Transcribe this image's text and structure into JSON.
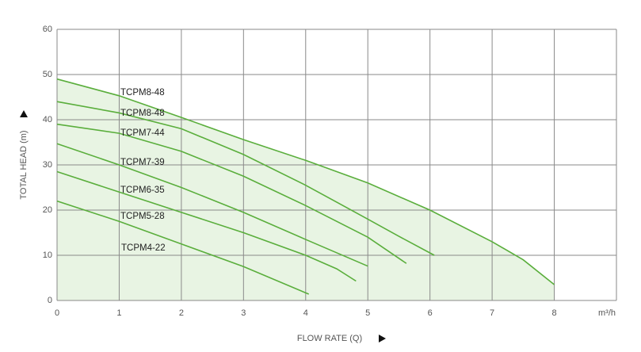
{
  "chart_data": {
    "type": "line",
    "x_label": "FLOW RATE (Q)",
    "y_label": "TOTAL HEAD (m)",
    "x_unit": "m³/h",
    "xlim": [
      0,
      9
    ],
    "xticks": [
      0,
      1,
      2,
      3,
      4,
      5,
      6,
      7,
      8
    ],
    "ylim": [
      0,
      60
    ],
    "yticks": [
      0,
      10,
      20,
      30,
      40,
      50,
      60
    ],
    "grid": true,
    "fill_color": "#e8f4e3",
    "series": [
      {
        "name": "TCPM8-48",
        "color": "#5aae3c",
        "x": [
          0,
          1,
          2,
          3,
          4,
          5,
          6,
          7,
          7.5,
          8
        ],
        "values": [
          49,
          45.3,
          40.5,
          35.6,
          31,
          26,
          20,
          13,
          9,
          3.5
        ]
      },
      {
        "name": "TCPM8-48",
        "color": "#5aae3c",
        "x": [
          0,
          1,
          2,
          3,
          4,
          5,
          5.5,
          6.07
        ],
        "values": [
          44,
          41.5,
          38,
          32.3,
          25.5,
          18,
          14.2,
          10
        ]
      },
      {
        "name": "TCPM7-44",
        "color": "#5aae3c",
        "x": [
          0,
          1,
          2,
          3,
          4,
          5,
          5.62
        ],
        "values": [
          39,
          37,
          33,
          27.5,
          21,
          14,
          8.2
        ]
      },
      {
        "name": "TCPM7-39",
        "color": "#5aae3c",
        "x": [
          0,
          1,
          2,
          3,
          4,
          5
        ],
        "values": [
          34.7,
          30,
          25,
          19.5,
          13.5,
          7.6
        ]
      },
      {
        "name": "TCPM6-35",
        "color": "#5aae3c",
        "x": [
          0,
          1,
          2,
          3,
          4,
          4.5,
          4.81
        ],
        "values": [
          28.5,
          24,
          19.5,
          15,
          10,
          7,
          4.3
        ]
      },
      {
        "name": "TCPM5-28",
        "color": "#5aae3c",
        "x": [
          0,
          1,
          2,
          3,
          4.05
        ],
        "values": [
          22,
          17.5,
          12.5,
          7.5,
          1.4
        ]
      }
    ],
    "labels": [
      "TCPM4-22"
    ]
  }
}
